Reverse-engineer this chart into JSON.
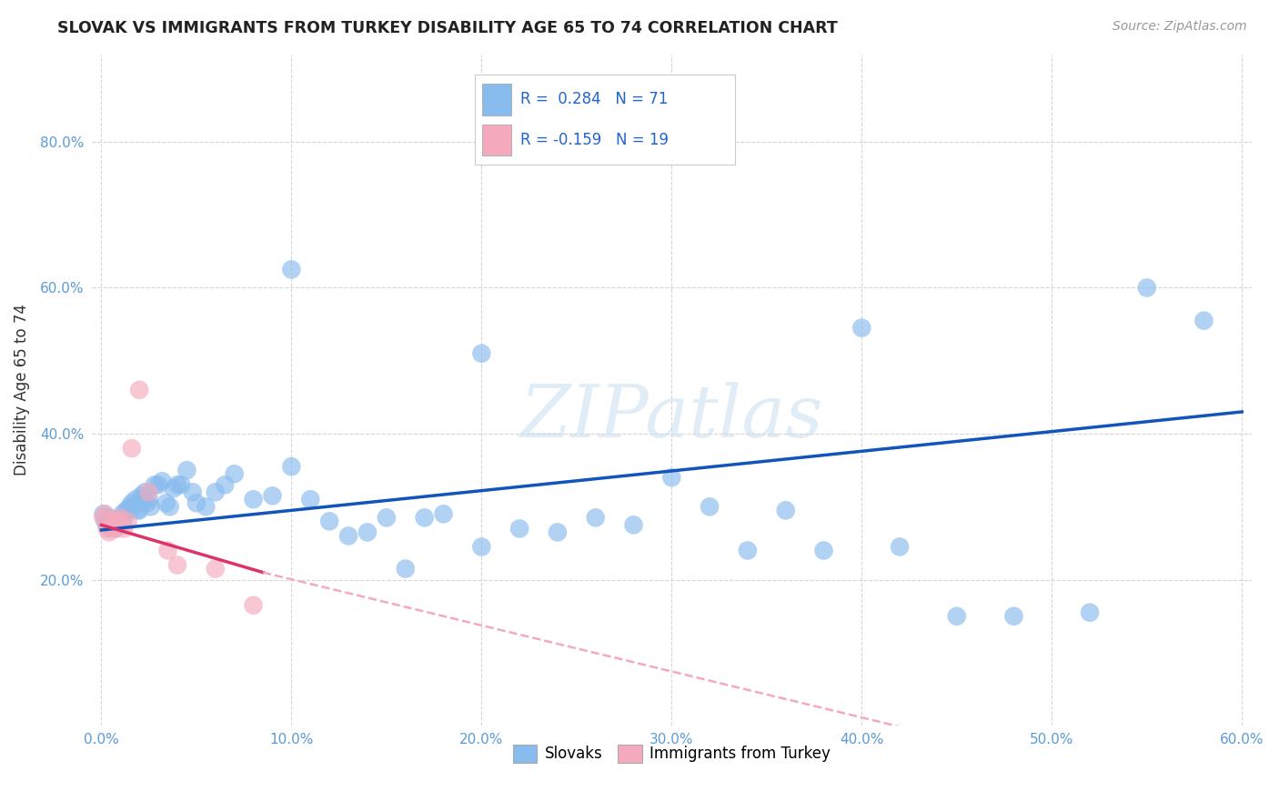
{
  "title": "SLOVAK VS IMMIGRANTS FROM TURKEY DISABILITY AGE 65 TO 74 CORRELATION CHART",
  "source": "Source: ZipAtlas.com",
  "ylabel": "Disability Age 65 to 74",
  "xlim": [
    -0.005,
    0.605
  ],
  "ylim": [
    0.0,
    0.92
  ],
  "xtick_labels": [
    "0.0%",
    "10.0%",
    "20.0%",
    "30.0%",
    "40.0%",
    "50.0%",
    "60.0%"
  ],
  "xtick_vals": [
    0.0,
    0.1,
    0.2,
    0.3,
    0.4,
    0.5,
    0.6
  ],
  "ytick_labels": [
    "20.0%",
    "40.0%",
    "60.0%",
    "80.0%"
  ],
  "ytick_vals": [
    0.2,
    0.4,
    0.6,
    0.8
  ],
  "grid_color": "#cccccc",
  "background_color": "#ffffff",
  "watermark": "ZIPatlas",
  "color_blue": "#88BBEE",
  "color_pink": "#F4AABC",
  "line_blue": "#1155BB",
  "line_pink_solid": "#DD3366",
  "line_pink_dashed": "#F4AABC",
  "blue_x": [
    0.001,
    0.002,
    0.003,
    0.004,
    0.005,
    0.006,
    0.007,
    0.008,
    0.009,
    0.01,
    0.011,
    0.012,
    0.013,
    0.014,
    0.015,
    0.016,
    0.017,
    0.018,
    0.019,
    0.02,
    0.021,
    0.022,
    0.023,
    0.024,
    0.025,
    0.026,
    0.028,
    0.03,
    0.032,
    0.034,
    0.036,
    0.038,
    0.04,
    0.042,
    0.045,
    0.048,
    0.05,
    0.055,
    0.06,
    0.065,
    0.07,
    0.08,
    0.09,
    0.1,
    0.11,
    0.12,
    0.13,
    0.14,
    0.15,
    0.16,
    0.17,
    0.18,
    0.2,
    0.22,
    0.24,
    0.26,
    0.28,
    0.3,
    0.32,
    0.34,
    0.36,
    0.38,
    0.42,
    0.45,
    0.48,
    0.52,
    0.55,
    0.58,
    0.1,
    0.2,
    0.4
  ],
  "blue_y": [
    0.29,
    0.28,
    0.275,
    0.285,
    0.275,
    0.28,
    0.27,
    0.275,
    0.28,
    0.285,
    0.29,
    0.285,
    0.295,
    0.295,
    0.3,
    0.305,
    0.3,
    0.31,
    0.295,
    0.295,
    0.315,
    0.31,
    0.32,
    0.305,
    0.31,
    0.3,
    0.33,
    0.33,
    0.335,
    0.305,
    0.3,
    0.325,
    0.33,
    0.33,
    0.35,
    0.32,
    0.305,
    0.3,
    0.32,
    0.33,
    0.345,
    0.31,
    0.315,
    0.355,
    0.31,
    0.28,
    0.26,
    0.265,
    0.285,
    0.215,
    0.285,
    0.29,
    0.245,
    0.27,
    0.265,
    0.285,
    0.275,
    0.34,
    0.3,
    0.24,
    0.295,
    0.24,
    0.245,
    0.15,
    0.15,
    0.155,
    0.6,
    0.555,
    0.625,
    0.51,
    0.545
  ],
  "pink_x": [
    0.001,
    0.002,
    0.003,
    0.004,
    0.005,
    0.006,
    0.007,
    0.008,
    0.009,
    0.01,
    0.012,
    0.014,
    0.016,
    0.02,
    0.025,
    0.035,
    0.04,
    0.06,
    0.08
  ],
  "pink_y": [
    0.285,
    0.29,
    0.27,
    0.265,
    0.27,
    0.28,
    0.28,
    0.27,
    0.28,
    0.285,
    0.27,
    0.28,
    0.38,
    0.46,
    0.32,
    0.24,
    0.22,
    0.215,
    0.165
  ],
  "blue_trend": [
    0.0,
    0.6,
    0.268,
    0.43
  ],
  "pink_solid": [
    0.0,
    0.085,
    0.275,
    0.21
  ],
  "pink_dashed": [
    0.085,
    0.6,
    0.21,
    -0.115
  ]
}
